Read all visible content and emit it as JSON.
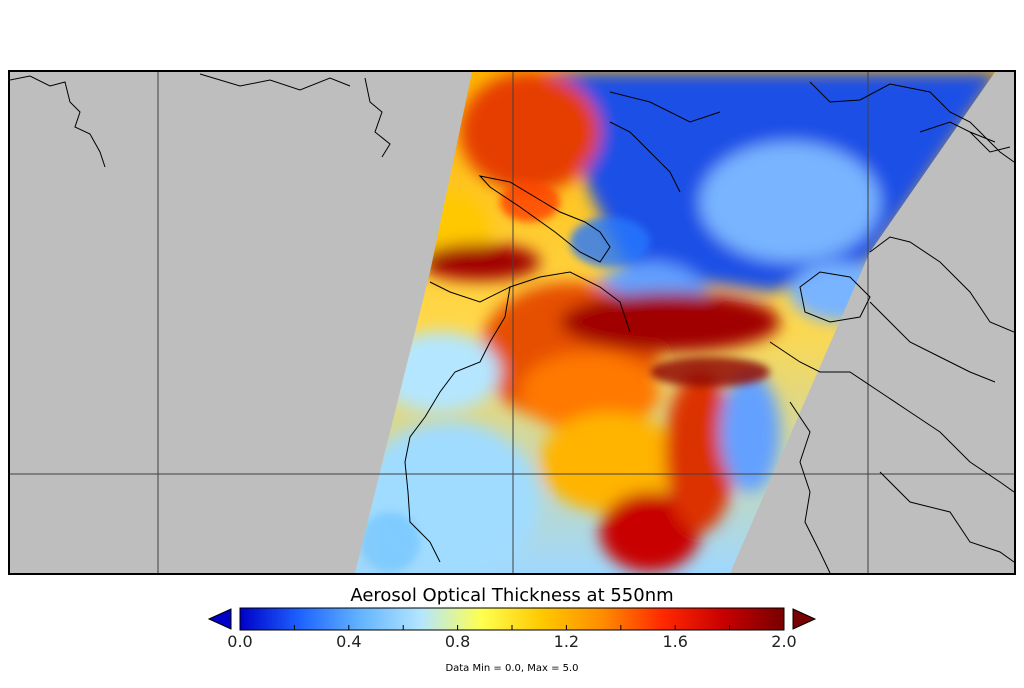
{
  "colorbar": {
    "title": "Aerosol Optical Thickness at 550nm",
    "min": 0.0,
    "max": 2.0,
    "ticks": [
      "0.0",
      "0.4",
      "0.8",
      "1.2",
      "1.6",
      "2.0"
    ],
    "colors": [
      "#0000c8",
      "#1e64ff",
      "#64b4ff",
      "#b4e6ff",
      "#ffff50",
      "#ffc800",
      "#ff8c00",
      "#ff2800",
      "#c80000",
      "#780000"
    ],
    "underflow_color": "#0000c8",
    "overflow_color": "#780000"
  },
  "data_range": "Data Min = 0.0, Max = 5.0",
  "map": {
    "background_color": "#bebebe",
    "gridline_color": "#404040"
  }
}
